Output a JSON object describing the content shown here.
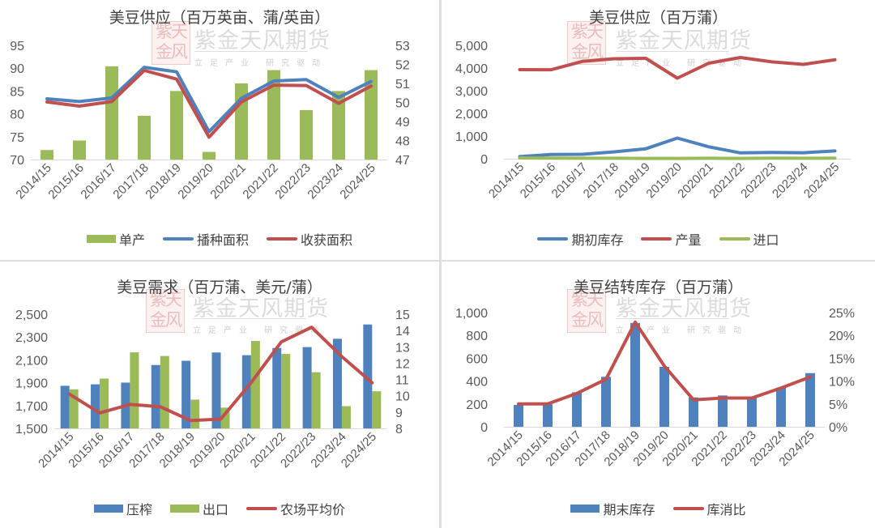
{
  "watermark": {
    "seal_text": "紫天金风",
    "brand": "紫金天风期货",
    "slogan": "立足产业 研究驱动"
  },
  "colors": {
    "blue": "#4F81BD",
    "red": "#C0504D",
    "green": "#9BBB59",
    "axis_text": "#595959",
    "axis_line": "#D9D9D9"
  },
  "chart_data": [
    {
      "id": "supply_area",
      "type": "bar+line",
      "title": "美豆供应（百万英亩、蒲/英亩）",
      "categories": [
        "2014/15",
        "2015/16",
        "2016/17",
        "2017/18",
        "2018/19",
        "2019/20",
        "2020/21",
        "2021/22",
        "2022/23",
        "2023/24",
        "2024/25"
      ],
      "left_axis": {
        "ticks": [
          "70",
          "75",
          "80",
          "85",
          "90",
          "95"
        ],
        "range": [
          70,
          95
        ]
      },
      "right_axis": {
        "ticks": [
          "47",
          "48",
          "49",
          "50",
          "51",
          "52",
          "53"
        ],
        "range": [
          47,
          53
        ]
      },
      "series": [
        {
          "name": "单产",
          "kind": "bar",
          "axis": "right",
          "color": "#9BBB59",
          "values": [
            47.5,
            48.0,
            51.9,
            49.3,
            50.6,
            47.4,
            51.0,
            51.7,
            49.6,
            50.6,
            51.7
          ]
        },
        {
          "name": "播种面积",
          "kind": "line",
          "axis": "left",
          "color": "#4F81BD",
          "values": [
            83.3,
            82.7,
            83.5,
            90.2,
            89.2,
            76.1,
            83.4,
            87.2,
            87.5,
            83.6,
            87.1
          ]
        },
        {
          "name": "收获面积",
          "kind": "line",
          "axis": "left",
          "color": "#C0504D",
          "values": [
            82.6,
            81.7,
            82.7,
            89.5,
            87.6,
            74.9,
            82.6,
            86.3,
            86.2,
            82.3,
            86.1
          ]
        }
      ],
      "legend": [
        "单产",
        "播种面积",
        "收获面积"
      ]
    },
    {
      "id": "supply_volume",
      "type": "line",
      "title": "美豆供应（百万蒲）",
      "categories": [
        "2014/15",
        "2015/16",
        "2016/17",
        "2017/18",
        "2018/19",
        "2019/20",
        "2020/21",
        "2021/22",
        "2022/23",
        "2023/24",
        "2024/25"
      ],
      "left_axis": {
        "ticks": [
          "0",
          "1,000",
          "2,000",
          "3,000",
          "4,000",
          "5,000"
        ],
        "range": [
          0,
          5000
        ]
      },
      "series": [
        {
          "name": "期初库存",
          "kind": "line",
          "axis": "left",
          "color": "#4F81BD",
          "values": [
            92,
            191,
            197,
            302,
            438,
            909,
            525,
            257,
            274,
            264,
            342
          ]
        },
        {
          "name": "产量",
          "kind": "line",
          "axis": "left",
          "color": "#C0504D",
          "values": [
            3927,
            3926,
            4296,
            4412,
            4428,
            3552,
            4216,
            4465,
            4270,
            4162,
            4366
          ]
        },
        {
          "name": "进口",
          "kind": "line",
          "axis": "left",
          "color": "#9BBB59",
          "values": [
            33,
            24,
            22,
            22,
            14,
            15,
            20,
            16,
            25,
            21,
            25
          ]
        }
      ],
      "legend": [
        "期初库存",
        "产量",
        "进口"
      ]
    },
    {
      "id": "demand",
      "type": "bar+line",
      "title": "美豆需求（百万蒲、美元/蒲）",
      "categories": [
        "2014/15",
        "2015/16",
        "2016/17",
        "2017/18",
        "2018/19",
        "2019/20",
        "2020/21",
        "2021/22",
        "2022/23",
        "2023/24",
        "2024/25"
      ],
      "left_axis": {
        "ticks": [
          "1,500",
          "1,700",
          "1,900",
          "2,100",
          "2,300",
          "2,500"
        ],
        "range": [
          1500,
          2500
        ]
      },
      "right_axis": {
        "ticks": [
          "8",
          "9",
          "10",
          "11",
          "12",
          "13",
          "14",
          "15"
        ],
        "range": [
          8,
          15
        ]
      },
      "series": [
        {
          "name": "压榨",
          "kind": "bar",
          "axis": "left",
          "color": "#4F81BD",
          "values": [
            1873,
            1886,
            1901,
            2055,
            2092,
            2165,
            2141,
            2204,
            2212,
            2285,
            2410
          ]
        },
        {
          "name": "出口",
          "kind": "bar",
          "axis": "left",
          "color": "#9BBB59",
          "values": [
            1842,
            1936,
            2166,
            2134,
            1752,
            1682,
            2266,
            2152,
            1992,
            1695,
            1825
          ]
        },
        {
          "name": "农场平均价",
          "kind": "line",
          "axis": "right",
          "color": "#C0504D",
          "values": [
            10.1,
            8.95,
            9.47,
            9.33,
            8.48,
            8.57,
            10.8,
            13.3,
            14.2,
            12.4,
            10.8
          ]
        }
      ],
      "legend": [
        "压榨",
        "出口",
        "农场平均价"
      ]
    },
    {
      "id": "carryover",
      "type": "bar+line",
      "title": "美豆结转库存（百万蒲）",
      "categories": [
        "2014/15",
        "2015/16",
        "2016/17",
        "2017/18",
        "2018/19",
        "2019/20",
        "2020/21",
        "2021/22",
        "2022/23",
        "2023/24",
        "2024/25"
      ],
      "left_axis": {
        "ticks": [
          "0",
          "200",
          "400",
          "600",
          "800",
          "1,000"
        ],
        "range": [
          0,
          1000
        ]
      },
      "right_axis": {
        "ticks": [
          "0%",
          "5%",
          "10%",
          "15%",
          "20%",
          "25%"
        ],
        "range": [
          0,
          25
        ]
      },
      "series": [
        {
          "name": "期末库存",
          "kind": "bar",
          "axis": "left",
          "color": "#4F81BD",
          "values": [
            191,
            197,
            302,
            438,
            909,
            525,
            257,
            274,
            264,
            342,
            470
          ]
        },
        {
          "name": "库消比",
          "kind": "line",
          "axis": "right",
          "color": "#C0504D",
          "values": [
            5.0,
            5.0,
            7.3,
            10.4,
            22.9,
            13.3,
            5.9,
            6.3,
            6.3,
            8.5,
            10.9
          ]
        }
      ],
      "legend": [
        "期末库存",
        "库消比"
      ]
    }
  ]
}
